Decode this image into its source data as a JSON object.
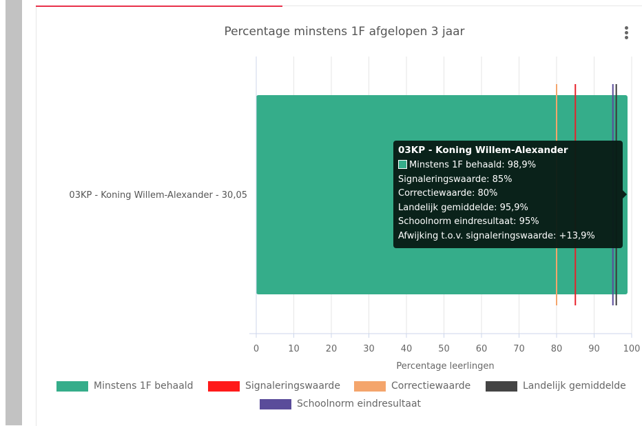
{
  "chart_data": {
    "type": "bar",
    "orientation": "horizontal",
    "title": "Percentage minstens 1F afgelopen 3 jaar",
    "xlabel": "Percentage leerlingen",
    "ylabel": "",
    "xlim": [
      0,
      100
    ],
    "x_ticks": [
      0,
      10,
      20,
      30,
      40,
      50,
      60,
      70,
      80,
      90,
      100
    ],
    "categories": [
      "03KP - Koning Willem-Alexander - 30,05"
    ],
    "series": [
      {
        "name": "Minstens 1F behaald",
        "values": [
          98.9
        ],
        "color": "#35ad8a"
      }
    ],
    "reference_lines": [
      {
        "name": "Signaleringswaarde",
        "value": 85,
        "color": "#e8202a"
      },
      {
        "name": "Correctiewaarde",
        "value": 80,
        "color": "#f4a56c"
      },
      {
        "name": "Landelijk gemiddelde",
        "value": 95.9,
        "color": "#3a3a3a"
      },
      {
        "name": "Schoolnorm eindresultaat",
        "value": 95,
        "color": "#5a4c9a"
      }
    ],
    "grid": true,
    "legend_position": "bottom"
  },
  "legend": [
    {
      "label": "Minstens 1F behaald",
      "color": "#35ad8a"
    },
    {
      "label": "Signaleringswaarde",
      "color": "#ff1a1a"
    },
    {
      "label": "Correctiewaarde",
      "color": "#f4a56c"
    },
    {
      "label": "Landelijk gemiddelde",
      "color": "#444444"
    },
    {
      "label": "Schoolnorm eindresultaat",
      "color": "#5a4c9a"
    }
  ],
  "tooltip": {
    "title": "03KP - Koning Willem-Alexander",
    "lines": [
      "Minstens 1F behaald: 98,9%",
      "Signaleringswaarde: 85%",
      "Correctiewaarde: 80%",
      "Landelijk gemiddelde: 95,9%",
      "Schoolnorm eindresultaat: 95%",
      "Afwijking t.o.v. signaleringswaarde: +13,9%"
    ],
    "swatch_color": "#35ad8a"
  },
  "menu_icon": "more-vertical-icon"
}
